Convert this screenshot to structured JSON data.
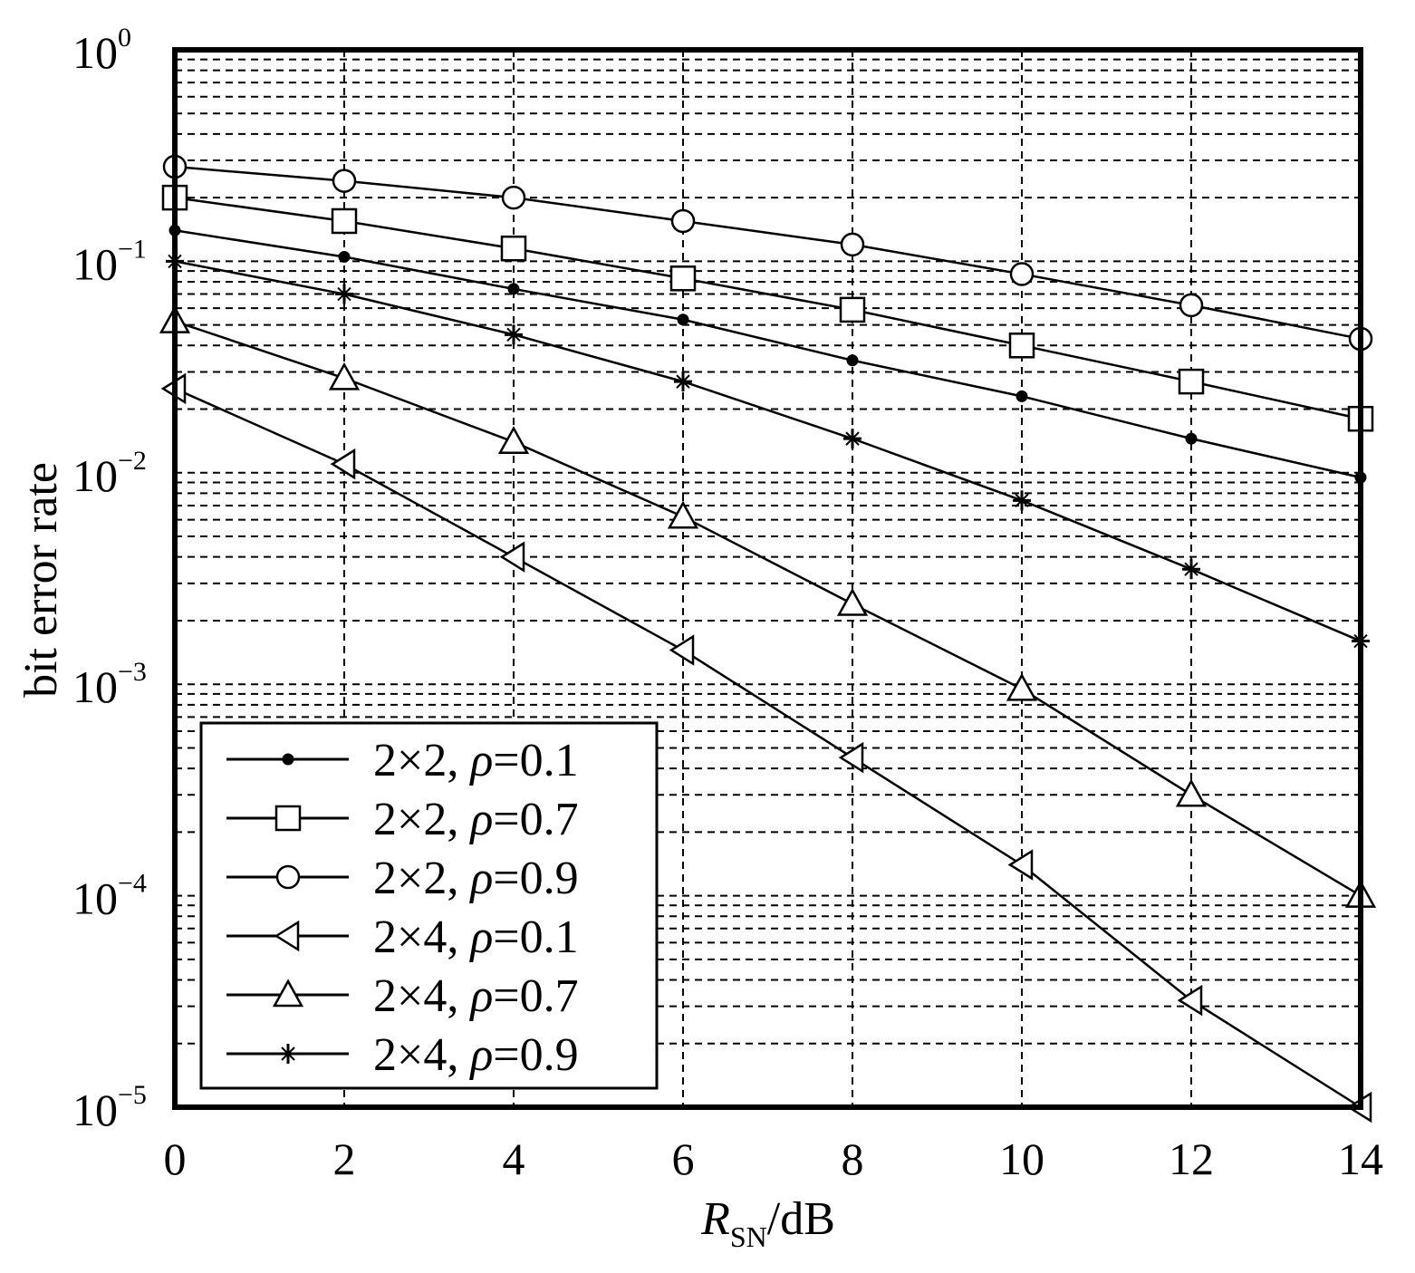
{
  "chart_data": {
    "type": "line",
    "xlabel_main": "R",
    "xlabel_sub": "SN",
    "xlabel_unit": "/dB",
    "ylabel": "bit error rate",
    "yscale": "log",
    "xlim": [
      0,
      14
    ],
    "ylim": [
      1e-05,
      1
    ],
    "grid": true,
    "legend_position": "bottom-left",
    "x_ticks": [
      "0",
      "2",
      "4",
      "6",
      "8",
      "10",
      "12",
      "14"
    ],
    "y_tick_bases": [
      "10",
      "10",
      "10",
      "10",
      "10",
      "10"
    ],
    "y_tick_exps": [
      "0",
      "−1",
      "−2",
      "−3",
      "−4",
      "−5"
    ],
    "x": [
      0,
      2,
      4,
      6,
      8,
      10,
      12,
      14
    ],
    "series": [
      {
        "name": "2×2, ρ=0.1",
        "label_prefix": "2×2, ",
        "label_rho": "ρ",
        "label_suffix": "=0.1",
        "marker": "dot",
        "values": [
          0.14,
          0.105,
          0.074,
          0.053,
          0.034,
          0.023,
          0.0145,
          0.0095
        ]
      },
      {
        "name": "2×2, ρ=0.7",
        "label_prefix": "2×2, ",
        "label_rho": "ρ",
        "label_suffix": "=0.7",
        "marker": "square",
        "values": [
          0.2,
          0.155,
          0.115,
          0.083,
          0.059,
          0.04,
          0.027,
          0.018
        ]
      },
      {
        "name": "2×2, ρ=0.9",
        "label_prefix": "2×2, ",
        "label_rho": "ρ",
        "label_suffix": "=0.9",
        "marker": "circle",
        "values": [
          0.28,
          0.24,
          0.2,
          0.155,
          0.12,
          0.087,
          0.062,
          0.043
        ]
      },
      {
        "name": "2×4, ρ=0.1",
        "label_prefix": "2×4, ",
        "label_rho": "ρ",
        "label_suffix": "=0.1",
        "marker": "triangle-left",
        "values": [
          0.025,
          0.011,
          0.004,
          0.00145,
          0.00045,
          0.00014,
          3.2e-05,
          1e-05
        ]
      },
      {
        "name": "2×4, ρ=0.7",
        "label_prefix": "2×4, ",
        "label_rho": "ρ",
        "label_suffix": "=0.7",
        "marker": "triangle-up",
        "values": [
          0.052,
          0.028,
          0.014,
          0.0062,
          0.0024,
          0.00095,
          0.0003,
          0.0001
        ]
      },
      {
        "name": "2×4, ρ=0.9",
        "label_prefix": "2×4, ",
        "label_rho": "ρ",
        "label_suffix": "=0.9",
        "marker": "star",
        "values": [
          0.1,
          0.07,
          0.045,
          0.027,
          0.0145,
          0.0074,
          0.0035,
          0.0016
        ]
      }
    ]
  }
}
